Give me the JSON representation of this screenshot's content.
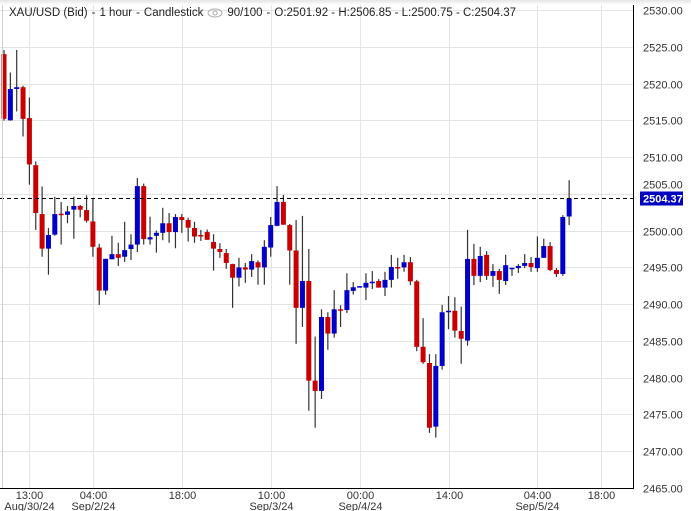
{
  "header": {
    "symbol": "XAU/USD (Bid)",
    "interval": "1 hour",
    "style": "Candlestick",
    "visibility_icon": "eye-icon",
    "count": "90/100",
    "ohlc": "O:2501.92 - H:2506.85 - L:2500.75 - C:2504.37"
  },
  "colors": {
    "up": "#0000c8",
    "down": "#c80000",
    "wick": "#333333",
    "last_price_bg": "#0000c0",
    "grid": "#e4e4e4"
  },
  "last_price": {
    "value": 2504.37,
    "label": "2504.37"
  },
  "chart_data": {
    "type": "candlestick",
    "title": "XAU/USD (Bid) - 1 hour - Candlestick",
    "ylim": [
      2465,
      2530
    ],
    "y_ticks": [
      "2530.00",
      "2525.00",
      "2520.00",
      "2515.00",
      "2510.00",
      "2505.00",
      "2500.00",
      "2495.00",
      "2490.00",
      "2485.00",
      "2480.00",
      "2475.00",
      "2470.00",
      "2465.00"
    ],
    "x_ticks": [
      {
        "at_candle": 4,
        "time": "13:00",
        "date": "Aug/30/24"
      },
      {
        "at_candle": 14,
        "time": "04:00",
        "date": "Sep/2/24"
      },
      {
        "at_candle": 28,
        "time": "18:00",
        "date": ""
      },
      {
        "at_candle": 42,
        "time": "10:00",
        "date": "Sep/3/24"
      },
      {
        "at_candle": 56,
        "time": "00:00",
        "date": "Sep/4/24"
      },
      {
        "at_candle": 70,
        "time": "14:00",
        "date": ""
      },
      {
        "at_candle": 84,
        "time": "04:00",
        "date": "Sep/5/24"
      },
      {
        "at_candle": 94,
        "time": "18:00",
        "date": ""
      }
    ],
    "grid": true,
    "ohlc_fields": [
      "open",
      "high",
      "low",
      "close"
    ],
    "candles": [
      [
        2524.0,
        2524.56,
        2514.95,
        2515.2
      ],
      [
        2515.0,
        2521.5,
        2514.95,
        2519.26
      ],
      [
        2519.26,
        2524.56,
        2516.2,
        2519.5
      ],
      [
        2519.5,
        2519.7,
        2512.8,
        2515.2
      ],
      [
        2515.3,
        2518.1,
        2506.25,
        2509.0
      ],
      [
        2508.9,
        2509.4,
        2500.1,
        2502.4
      ],
      [
        2502.25,
        2506.0,
        2496.45,
        2497.55
      ],
      [
        2497.55,
        2500.35,
        2494.0,
        2499.4
      ],
      [
        2499.45,
        2504.6,
        2499.3,
        2502.25
      ],
      [
        2502.3,
        2503.9,
        2498.1,
        2502.2
      ],
      [
        2502.15,
        2503.35,
        2501.0,
        2502.6
      ],
      [
        2502.85,
        2504.6,
        2498.9,
        2503.35
      ],
      [
        2503.35,
        2503.5,
        2501.8,
        2502.85
      ],
      [
        2502.8,
        2504.8,
        2501.1,
        2501.35
      ],
      [
        2501.25,
        2504.4,
        2496.45,
        2497.8
      ],
      [
        2497.7,
        2498.2,
        2489.9,
        2491.85
      ],
      [
        2491.85,
        2496.2,
        2491.3,
        2496.15
      ],
      [
        2496.1,
        2499.3,
        2496.1,
        2496.8
      ],
      [
        2496.8,
        2498.35,
        2495.2,
        2496.3
      ],
      [
        2496.45,
        2501.2,
        2495.75,
        2497.35
      ],
      [
        2497.5,
        2499.5,
        2496.0,
        2498.1
      ],
      [
        2498.1,
        2507.15,
        2497.1,
        2506.05
      ],
      [
        2506.05,
        2506.4,
        2498.1,
        2498.85
      ],
      [
        2498.8,
        2501.9,
        2498.1,
        2499.1
      ],
      [
        2499.3,
        2500.0,
        2497.0,
        2499.7
      ],
      [
        2499.7,
        2503.1,
        2498.7,
        2501.0
      ],
      [
        2501.0,
        2502.4,
        2498.35,
        2499.8
      ],
      [
        2499.8,
        2502.25,
        2497.6,
        2501.85
      ],
      [
        2501.85,
        2502.25,
        2499.7,
        2501.45
      ],
      [
        2501.45,
        2501.75,
        2498.5,
        2500.4
      ],
      [
        2500.35,
        2501.2,
        2498.35,
        2499.2
      ],
      [
        2499.4,
        2500.1,
        2498.6,
        2499.3
      ],
      [
        2499.8,
        2500.15,
        2498.75,
        2498.75
      ],
      [
        2498.45,
        2499.5,
        2494.55,
        2497.55
      ],
      [
        2497.5,
        2498.3,
        2496.3,
        2497.1
      ],
      [
        2496.95,
        2497.5,
        2494.8,
        2495.6
      ],
      [
        2495.45,
        2495.5,
        2489.5,
        2493.6
      ],
      [
        2493.6,
        2496.3,
        2492.4,
        2495.0
      ],
      [
        2495.0,
        2495.6,
        2492.9,
        2494.7
      ],
      [
        2494.7,
        2496.8,
        2493.7,
        2495.85
      ],
      [
        2495.7,
        2495.95,
        2492.65,
        2495.0
      ],
      [
        2495.0,
        2498.7,
        2492.65,
        2497.8
      ],
      [
        2497.7,
        2501.85,
        2496.45,
        2500.75
      ],
      [
        2500.65,
        2506.05,
        2500.6,
        2503.9
      ],
      [
        2503.9,
        2504.85,
        2500.8,
        2500.8
      ],
      [
        2500.75,
        2500.9,
        2492.65,
        2497.3
      ],
      [
        2497.3,
        2501.45,
        2484.6,
        2489.5
      ],
      [
        2489.5,
        2502.0,
        2486.9,
        2493.15
      ],
      [
        2493.15,
        2497.5,
        2475.5,
        2479.6
      ],
      [
        2479.6,
        2485.6,
        2473.2,
        2478.2
      ],
      [
        2478.2,
        2489.3,
        2477.1,
        2488.25
      ],
      [
        2488.25,
        2488.9,
        2483.8,
        2486.0
      ],
      [
        2486.0,
        2491.9,
        2485.45,
        2489.3
      ],
      [
        2489.3,
        2489.85,
        2486.9,
        2489.25
      ],
      [
        2489.2,
        2494.2,
        2488.8,
        2491.9
      ],
      [
        2491.8,
        2493.0,
        2491.3,
        2492.3
      ],
      [
        2492.35,
        2492.45,
        2492.35,
        2492.45
      ],
      [
        2492.25,
        2494.2,
        2490.55,
        2492.9
      ],
      [
        2492.95,
        2494.5,
        2492.05,
        2493.05
      ],
      [
        2493.15,
        2493.4,
        2492.25,
        2492.25
      ],
      [
        2492.25,
        2494.4,
        2491.1,
        2493.3
      ],
      [
        2493.3,
        2496.7,
        2492.25,
        2495.05
      ],
      [
        2495.05,
        2496.3,
        2493.45,
        2495.0
      ],
      [
        2495.0,
        2496.7,
        2494.4,
        2495.7
      ],
      [
        2495.7,
        2496.4,
        2492.6,
        2493.1
      ],
      [
        2493.1,
        2493.3,
        2483.6,
        2484.2
      ],
      [
        2484.2,
        2488.1,
        2481.9,
        2482.1
      ],
      [
        2482.0,
        2483.2,
        2472.5,
        2473.2
      ],
      [
        2473.35,
        2483.2,
        2471.85,
        2481.6
      ],
      [
        2481.6,
        2489.9,
        2481.1,
        2488.9
      ],
      [
        2489.0,
        2491.1,
        2486.6,
        2489.1
      ],
      [
        2489.1,
        2490.95,
        2485.45,
        2486.4
      ],
      [
        2486.35,
        2489.65,
        2481.9,
        2485.3
      ],
      [
        2485.05,
        2500.1,
        2484.35,
        2496.15
      ],
      [
        2496.15,
        2498.2,
        2492.6,
        2493.85
      ],
      [
        2493.85,
        2497.8,
        2493.0,
        2496.55
      ],
      [
        2496.7,
        2497.2,
        2493.3,
        2493.85
      ],
      [
        2493.85,
        2495.45,
        2492.35,
        2494.5
      ],
      [
        2494.5,
        2494.8,
        2491.4,
        2493.3
      ],
      [
        2493.15,
        2496.7,
        2492.6,
        2495.3
      ],
      [
        2494.85,
        2494.95,
        2493.85,
        2494.95
      ],
      [
        2494.9,
        2495.45,
        2494.25,
        2495.2
      ],
      [
        2495.2,
        2496.8,
        2494.9,
        2495.6
      ],
      [
        2495.6,
        2496.4,
        2494.4,
        2495.05
      ],
      [
        2494.9,
        2499.2,
        2494.4,
        2496.3
      ],
      [
        2496.3,
        2498.9,
        2496.3,
        2497.9
      ],
      [
        2497.9,
        2498.45,
        2494.5,
        2494.65
      ],
      [
        2494.65,
        2494.9,
        2493.7,
        2494.1
      ],
      [
        2494.1,
        2502.1,
        2493.85,
        2501.85
      ],
      [
        2501.92,
        2506.85,
        2500.75,
        2504.37
      ]
    ]
  }
}
